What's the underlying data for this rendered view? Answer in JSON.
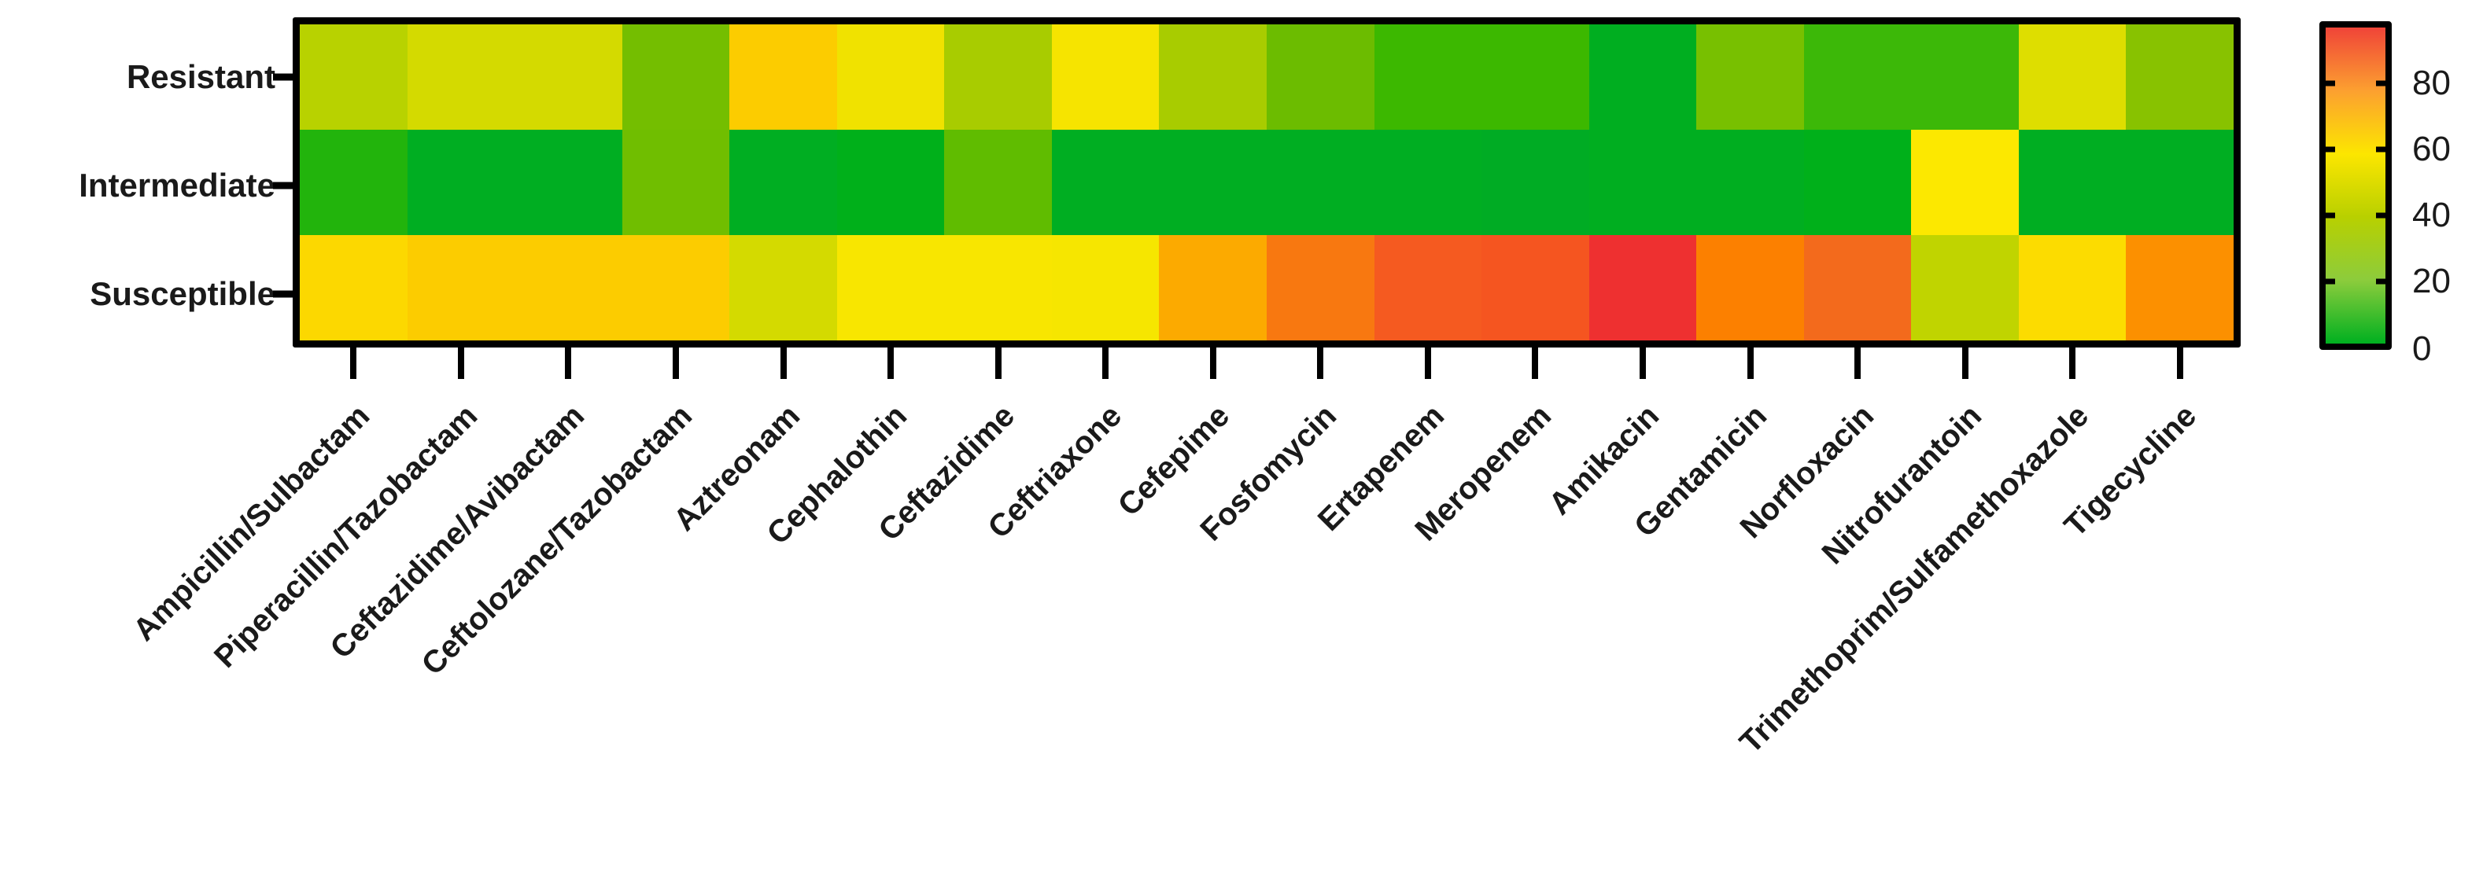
{
  "chart_data": {
    "type": "heatmap",
    "title": "",
    "xlabel": "",
    "ylabel": "",
    "rows": [
      "Resistant",
      "Intermediate",
      "Susceptible"
    ],
    "columns": [
      "Ampicillin/Sulbactam",
      "Piperacillin/Tazobactam",
      "Ceftazidime/Avibactam",
      "Ceftolozane/Tazobactam",
      "Aztreonam",
      "Cephalothin",
      "Ceftazidime",
      "Ceftriaxone",
      "Cefepime",
      "Fosfomycin",
      "Ertapenem",
      "Meropenem",
      "Amikacin",
      "Gentamicin",
      "Norfloxacin",
      "Nitrofurantoin",
      "Trimethoprim/Sulfamethoxazole",
      "Tigecycline"
    ],
    "values": [
      [
        36,
        40,
        40,
        20,
        60,
        47,
        33,
        50,
        32,
        20,
        12,
        12,
        2,
        22,
        13,
        13,
        43,
        26
      ],
      [
        6,
        1,
        1,
        20,
        1,
        1,
        15,
        1,
        1,
        1,
        1,
        1,
        1,
        1,
        2,
        52,
        1,
        1
      ],
      [
        58,
        59,
        59,
        60,
        39,
        52,
        52,
        49,
        67,
        79,
        87,
        87,
        97,
        77,
        85,
        35,
        56,
        73
      ]
    ],
    "cell_colors": [
      [
        "#b8d200",
        "#d4da00",
        "#d4da00",
        "#74be00",
        "#fccc00",
        "#f0e200",
        "#a8cc00",
        "#f6e400",
        "#a8cc00",
        "#6cbc00",
        "#3cb800",
        "#3cb800",
        "#00ae20",
        "#78c000",
        "#3cb808",
        "#3cb808",
        "#dede00",
        "#88c200"
      ],
      [
        "#22b40c",
        "#00ae22",
        "#00ae22",
        "#70be00",
        "#00ae22",
        "#00b01a",
        "#60bc00",
        "#00ae22",
        "#00ae22",
        "#00ae22",
        "#00ae22",
        "#00ac24",
        "#00ae20",
        "#00ae20",
        "#00b01a",
        "#fce800",
        "#00ae22",
        "#00ae22"
      ],
      [
        "#fcd800",
        "#fccc00",
        "#fccc00",
        "#fccc00",
        "#d4da00",
        "#f8e600",
        "#f8e600",
        "#f6e600",
        "#fcaa00",
        "#f87810",
        "#f55a20",
        "#f55520",
        "#ee3030",
        "#fc8000",
        "#f36a1c",
        "#c0d400",
        "#fcdc00",
        "#fc9000"
      ]
    ],
    "colorbar": {
      "min": 0,
      "max": 100,
      "ticks": [
        0,
        20,
        40,
        60,
        80
      ],
      "colors": [
        "#00b020",
        "#8ccc3c",
        "#b8d000",
        "#fce600",
        "#fca030",
        "#f04438"
      ]
    }
  },
  "yaxis": {
    "labels": [
      "Resistant",
      "Intermediate",
      "Susceptible"
    ]
  },
  "xaxis": {
    "labels": [
      "Ampicillin/Sulbactam",
      "Piperacillin/Tazobactam",
      "Ceftazidime/Avibactam",
      "Ceftolozane/Tazobactam",
      "Aztreonam",
      "Cephalothin",
      "Ceftazidime",
      "Ceftriaxone",
      "Cefepime",
      "Fosfomycin",
      "Ertapenem",
      "Meropenem",
      "Amikacin",
      "Gentamicin",
      "Norfloxacin",
      "Nitrofurantoin",
      "Trimethoprim/Sulfamethoxazole",
      "Tigecycline"
    ]
  },
  "colorbar": {
    "tick_labels": [
      "80",
      "60",
      "40",
      "20",
      "0"
    ]
  }
}
